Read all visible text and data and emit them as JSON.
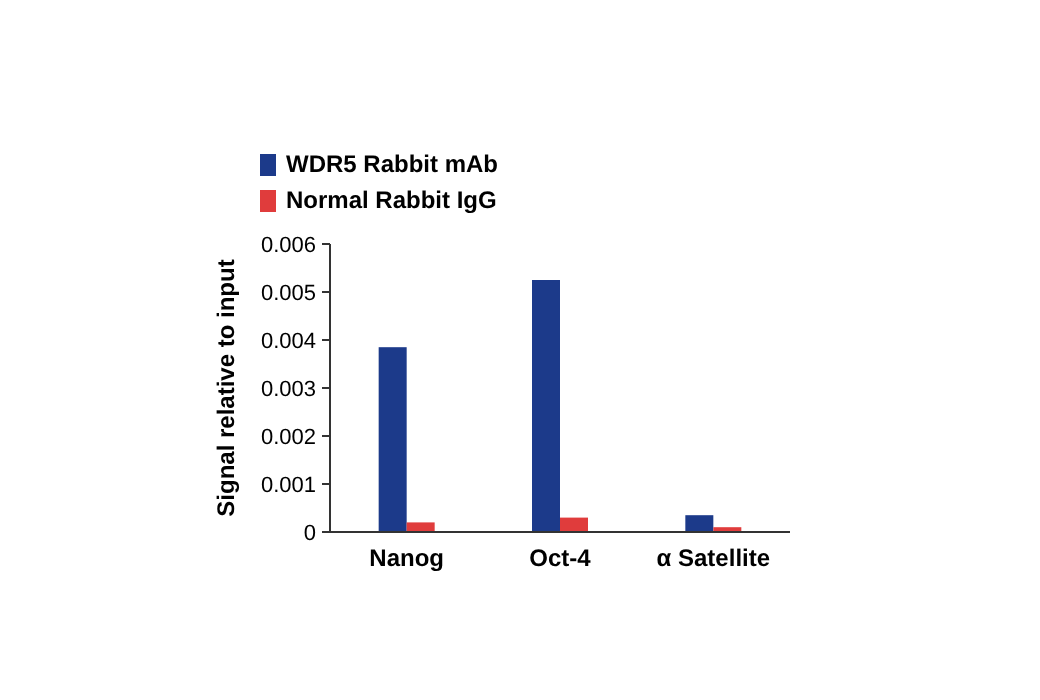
{
  "chart_data": {
    "type": "bar",
    "ylabel": "Signal relative to input",
    "categories": [
      "Nanog",
      "Oct-4",
      "α Satellite"
    ],
    "series": [
      {
        "name": "WDR5 Rabbit mAb",
        "color": "#1c3a8a",
        "values": [
          0.00385,
          0.00525,
          0.00035
        ]
      },
      {
        "name": "Normal Rabbit IgG",
        "color": "#e03c3c",
        "values": [
          0.0002,
          0.0003,
          0.0001
        ]
      }
    ],
    "ylim": [
      0,
      0.006
    ],
    "yticks": [
      {
        "value": 0,
        "label": "0"
      },
      {
        "value": 0.001,
        "label": "0.001"
      },
      {
        "value": 0.002,
        "label": "0.002"
      },
      {
        "value": 0.003,
        "label": "0.003"
      },
      {
        "value": 0.004,
        "label": "0.004"
      },
      {
        "value": 0.005,
        "label": "0.005"
      },
      {
        "value": 0.006,
        "label": "0.006"
      }
    ],
    "grid": false,
    "legend": "top"
  }
}
